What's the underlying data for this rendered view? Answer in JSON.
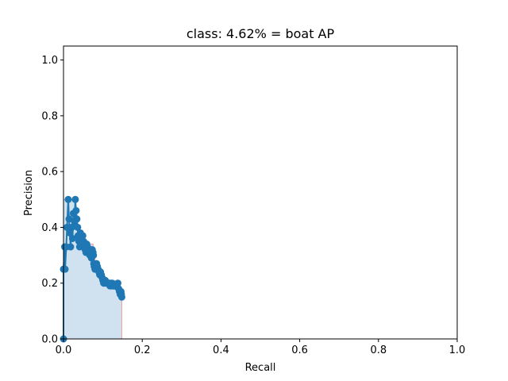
{
  "chart_data": {
    "type": "line",
    "title": "class: 4.62% = boat AP",
    "xlabel": "Recall",
    "ylabel": "Precision",
    "xlim": [
      0.0,
      1.0
    ],
    "ylim": [
      0.0,
      1.05
    ],
    "xticks": [
      "0.0",
      "0.2",
      "0.4",
      "0.6",
      "0.8",
      "1.0"
    ],
    "yticks": [
      "0.0",
      "0.2",
      "0.4",
      "0.6",
      "0.8",
      "1.0"
    ],
    "grid": false,
    "colors": {
      "line": "#1f77b4",
      "fill": "#bcd6ea",
      "edge": "#e8a0a0"
    },
    "pr_points": [
      [
        0.0,
        0.0
      ],
      [
        0.0,
        0.25
      ],
      [
        0.003,
        0.33
      ],
      [
        0.004,
        0.25
      ],
      [
        0.007,
        0.33
      ],
      [
        0.009,
        0.4
      ],
      [
        0.012,
        0.5
      ],
      [
        0.014,
        0.43
      ],
      [
        0.016,
        0.38
      ],
      [
        0.018,
        0.33
      ],
      [
        0.021,
        0.4
      ],
      [
        0.023,
        0.36
      ],
      [
        0.025,
        0.45
      ],
      [
        0.028,
        0.42
      ],
      [
        0.03,
        0.5
      ],
      [
        0.032,
        0.46
      ],
      [
        0.034,
        0.43
      ],
      [
        0.036,
        0.4
      ],
      [
        0.037,
        0.37
      ],
      [
        0.039,
        0.35
      ],
      [
        0.041,
        0.33
      ],
      [
        0.043,
        0.38
      ],
      [
        0.045,
        0.36
      ],
      [
        0.047,
        0.34
      ],
      [
        0.049,
        0.37
      ],
      [
        0.051,
        0.35
      ],
      [
        0.053,
        0.33
      ],
      [
        0.055,
        0.32
      ],
      [
        0.057,
        0.31
      ],
      [
        0.059,
        0.34
      ],
      [
        0.061,
        0.33
      ],
      [
        0.063,
        0.32
      ],
      [
        0.065,
        0.31
      ],
      [
        0.067,
        0.3
      ],
      [
        0.069,
        0.3
      ],
      [
        0.071,
        0.29
      ],
      [
        0.073,
        0.32
      ],
      [
        0.075,
        0.31
      ],
      [
        0.076,
        0.3
      ],
      [
        0.077,
        0.27
      ],
      [
        0.078,
        0.26
      ],
      [
        0.08,
        0.25
      ],
      [
        0.082,
        0.25
      ],
      [
        0.084,
        0.27
      ],
      [
        0.086,
        0.26
      ],
      [
        0.088,
        0.25
      ],
      [
        0.09,
        0.24
      ],
      [
        0.092,
        0.23
      ],
      [
        0.094,
        0.24
      ],
      [
        0.096,
        0.23
      ],
      [
        0.098,
        0.22
      ],
      [
        0.1,
        0.21
      ],
      [
        0.102,
        0.2
      ],
      [
        0.104,
        0.2
      ],
      [
        0.106,
        0.21
      ],
      [
        0.108,
        0.2
      ],
      [
        0.11,
        0.2
      ],
      [
        0.112,
        0.2
      ],
      [
        0.114,
        0.2
      ],
      [
        0.116,
        0.2
      ],
      [
        0.118,
        0.19
      ],
      [
        0.12,
        0.2
      ],
      [
        0.122,
        0.19
      ],
      [
        0.124,
        0.2
      ],
      [
        0.126,
        0.19
      ],
      [
        0.128,
        0.19
      ],
      [
        0.13,
        0.19
      ],
      [
        0.132,
        0.19
      ],
      [
        0.134,
        0.19
      ],
      [
        0.136,
        0.19
      ],
      [
        0.138,
        0.2
      ],
      [
        0.14,
        0.18
      ],
      [
        0.142,
        0.17
      ],
      [
        0.144,
        0.16
      ],
      [
        0.146,
        0.17
      ],
      [
        0.147,
        0.16
      ],
      [
        0.148,
        0.15
      ]
    ],
    "ap_envelope": [
      [
        0.0,
        0.5
      ],
      [
        0.03,
        0.5
      ],
      [
        0.03,
        0.4
      ],
      [
        0.04,
        0.4
      ],
      [
        0.04,
        0.38
      ],
      [
        0.05,
        0.38
      ],
      [
        0.05,
        0.34
      ],
      [
        0.075,
        0.34
      ],
      [
        0.075,
        0.32
      ],
      [
        0.08,
        0.32
      ],
      [
        0.08,
        0.27
      ],
      [
        0.086,
        0.27
      ],
      [
        0.086,
        0.24
      ],
      [
        0.096,
        0.24
      ],
      [
        0.096,
        0.21
      ],
      [
        0.108,
        0.21
      ],
      [
        0.108,
        0.2
      ],
      [
        0.138,
        0.2
      ],
      [
        0.138,
        0.17
      ],
      [
        0.148,
        0.17
      ],
      [
        0.148,
        0.0
      ]
    ]
  }
}
